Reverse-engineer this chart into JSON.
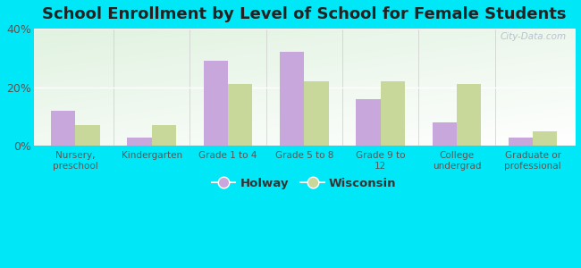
{
  "title": "School Enrollment by Level of School for Female Students",
  "categories": [
    "Nursery,\npreschool",
    "Kindergarten",
    "Grade 1 to 4",
    "Grade 5 to 8",
    "Grade 9 to\n12",
    "College\nundergrad",
    "Graduate or\nprofessional"
  ],
  "holway": [
    12,
    3,
    29,
    32,
    16,
    8,
    3
  ],
  "wisconsin": [
    7,
    7,
    21,
    22,
    22,
    21,
    5
  ],
  "holway_color": "#c8a8dc",
  "wisconsin_color": "#c8d89a",
  "background_color": "#00e8f8",
  "ylim": [
    0,
    40
  ],
  "yticks": [
    0,
    20,
    40
  ],
  "ytick_labels": [
    "0%",
    "20%",
    "40%"
  ],
  "legend_holway": "Holway",
  "legend_wisconsin": "Wisconsin",
  "watermark": "City-Data.com",
  "bar_width": 0.32,
  "title_fontsize": 13
}
